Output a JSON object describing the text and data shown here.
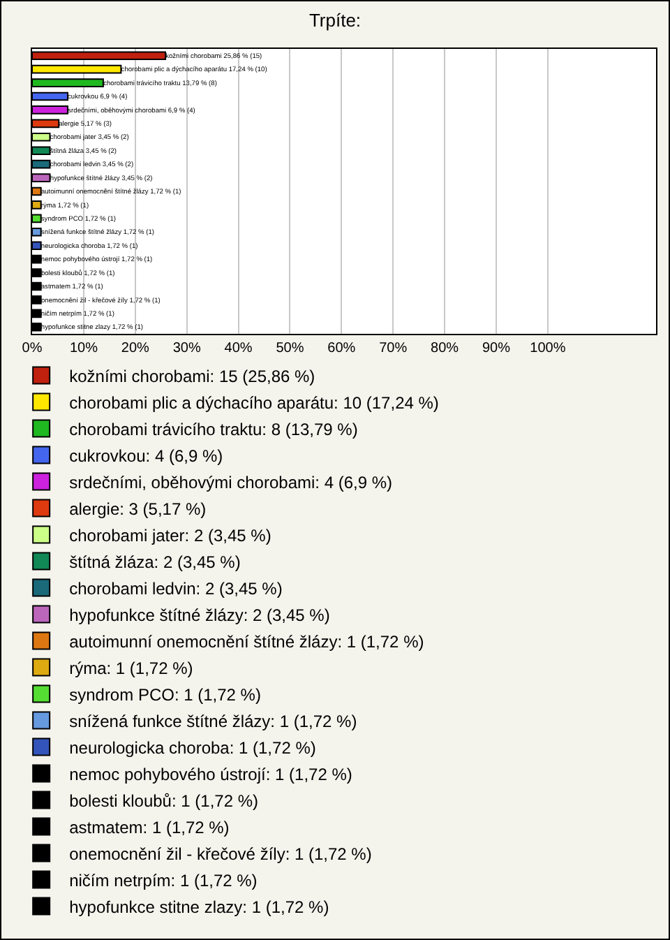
{
  "chart_data": {
    "type": "bar",
    "orientation": "horizontal",
    "title": "Trpíte:",
    "categories": [
      null,
      null,
      null,
      null,
      null,
      null,
      null,
      null,
      null,
      null,
      null,
      null,
      null,
      null,
      null,
      null,
      null,
      null,
      null,
      null,
      null
    ],
    "xlim": [
      0,
      121
    ],
    "xticks": [
      {
        "value": 0,
        "label": "0%"
      },
      {
        "value": 10,
        "label": "10%"
      },
      {
        "value": 20,
        "label": "20%"
      },
      {
        "value": 30,
        "label": "30%"
      },
      {
        "value": 40,
        "label": "40%"
      },
      {
        "value": 50,
        "label": "50%"
      },
      {
        "value": 60,
        "label": "60%"
      },
      {
        "value": 70,
        "label": "70%"
      },
      {
        "value": 80,
        "label": "80%"
      },
      {
        "value": 90,
        "label": "90%"
      },
      {
        "value": 100,
        "label": "100%"
      }
    ],
    "grid": "x",
    "legend": "bottom",
    "tick_labels": "x",
    "series": [
      {
        "name": "kožními chorobami: 15 (25,86 %)",
        "color": "#c0200e",
        "values": [
          25.86,
          null,
          null,
          null,
          null,
          null,
          null,
          null,
          null,
          null,
          null,
          null,
          null,
          null,
          null,
          null,
          null,
          null,
          null,
          null,
          null
        ],
        "value_labels": [
          "kožními chorobami 25,86 % (15)",
          null,
          null,
          null,
          null,
          null,
          null,
          null,
          null,
          null,
          null,
          null,
          null,
          null,
          null,
          null,
          null,
          null,
          null,
          null,
          null
        ]
      },
      {
        "name": "chorobami plic a dýchacího aparátu: 10 (17,24 %)",
        "color": "#ffe800",
        "values": [
          null,
          17.24,
          null,
          null,
          null,
          null,
          null,
          null,
          null,
          null,
          null,
          null,
          null,
          null,
          null,
          null,
          null,
          null,
          null,
          null,
          null
        ],
        "value_labels": [
          null,
          "chorobami plic a dýchacího aparátu 17,24 % (10)",
          null,
          null,
          null,
          null,
          null,
          null,
          null,
          null,
          null,
          null,
          null,
          null,
          null,
          null,
          null,
          null,
          null,
          null,
          null
        ]
      },
      {
        "name": "chorobami trávicího traktu: 8 (13,79 %)",
        "color": "#20b820",
        "values": [
          null,
          null,
          13.79,
          null,
          null,
          null,
          null,
          null,
          null,
          null,
          null,
          null,
          null,
          null,
          null,
          null,
          null,
          null,
          null,
          null,
          null
        ],
        "value_labels": [
          null,
          null,
          "chorobami trávicího traktu 13,79 % (8)",
          null,
          null,
          null,
          null,
          null,
          null,
          null,
          null,
          null,
          null,
          null,
          null,
          null,
          null,
          null,
          null,
          null,
          null
        ]
      },
      {
        "name": "cukrovkou: 4 (6,9 %)",
        "color": "#4466ee",
        "values": [
          null,
          null,
          null,
          6.9,
          null,
          null,
          null,
          null,
          null,
          null,
          null,
          null,
          null,
          null,
          null,
          null,
          null,
          null,
          null,
          null,
          null
        ],
        "value_labels": [
          null,
          null,
          null,
          "cukrovkou 6,9 % (4)",
          null,
          null,
          null,
          null,
          null,
          null,
          null,
          null,
          null,
          null,
          null,
          null,
          null,
          null,
          null,
          null,
          null
        ]
      },
      {
        "name": "srdečními, oběhovými chorobami: 4 (6,9 %)",
        "color": "#cc22dd",
        "values": [
          null,
          null,
          null,
          null,
          6.9,
          null,
          null,
          null,
          null,
          null,
          null,
          null,
          null,
          null,
          null,
          null,
          null,
          null,
          null,
          null,
          null
        ],
        "value_labels": [
          null,
          null,
          null,
          null,
          "srdečními, oběhovými chorobami 6,9 % (4)",
          null,
          null,
          null,
          null,
          null,
          null,
          null,
          null,
          null,
          null,
          null,
          null,
          null,
          null,
          null,
          null
        ]
      },
      {
        "name": "alergie: 3 (5,17 %)",
        "color": "#dd3a10",
        "values": [
          null,
          null,
          null,
          null,
          null,
          5.17,
          null,
          null,
          null,
          null,
          null,
          null,
          null,
          null,
          null,
          null,
          null,
          null,
          null,
          null,
          null
        ],
        "value_labels": [
          null,
          null,
          null,
          null,
          null,
          "alergie 5,17 % (3)",
          null,
          null,
          null,
          null,
          null,
          null,
          null,
          null,
          null,
          null,
          null,
          null,
          null,
          null,
          null
        ]
      },
      {
        "name": "chorobami jater: 2 (3,45 %)",
        "color": "#ccff88",
        "values": [
          null,
          null,
          null,
          null,
          null,
          null,
          3.45,
          null,
          null,
          null,
          null,
          null,
          null,
          null,
          null,
          null,
          null,
          null,
          null,
          null,
          null
        ],
        "value_labels": [
          null,
          null,
          null,
          null,
          null,
          null,
          "chorobami jater 3,45 % (2)",
          null,
          null,
          null,
          null,
          null,
          null,
          null,
          null,
          null,
          null,
          null,
          null,
          null,
          null
        ]
      },
      {
        "name": "štítná žláza: 2 (3,45 %)",
        "color": "#118855",
        "values": [
          null,
          null,
          null,
          null,
          null,
          null,
          null,
          3.45,
          null,
          null,
          null,
          null,
          null,
          null,
          null,
          null,
          null,
          null,
          null,
          null,
          null
        ],
        "value_labels": [
          null,
          null,
          null,
          null,
          null,
          null,
          null,
          "štítná žláza 3,45 % (2)",
          null,
          null,
          null,
          null,
          null,
          null,
          null,
          null,
          null,
          null,
          null,
          null,
          null
        ]
      },
      {
        "name": "chorobami ledvin: 2 (3,45 %)",
        "color": "#1a6a7a",
        "values": [
          null,
          null,
          null,
          null,
          null,
          null,
          null,
          null,
          3.45,
          null,
          null,
          null,
          null,
          null,
          null,
          null,
          null,
          null,
          null,
          null,
          null
        ],
        "value_labels": [
          null,
          null,
          null,
          null,
          null,
          null,
          null,
          null,
          "chorobami ledvin 3,45 % (2)",
          null,
          null,
          null,
          null,
          null,
          null,
          null,
          null,
          null,
          null,
          null,
          null
        ]
      },
      {
        "name": "hypofunkce štítné žlázy: 2 (3,45 %)",
        "color": "#bb66bb",
        "values": [
          null,
          null,
          null,
          null,
          null,
          null,
          null,
          null,
          null,
          3.45,
          null,
          null,
          null,
          null,
          null,
          null,
          null,
          null,
          null,
          null,
          null
        ],
        "value_labels": [
          null,
          null,
          null,
          null,
          null,
          null,
          null,
          null,
          null,
          "hypofunkce štítné žlázy 3,45 % (2)",
          null,
          null,
          null,
          null,
          null,
          null,
          null,
          null,
          null,
          null,
          null
        ]
      },
      {
        "name": "autoimunní onemocnění štítné žlázy: 1 (1,72 %)",
        "color": "#dd7711",
        "values": [
          null,
          null,
          null,
          null,
          null,
          null,
          null,
          null,
          null,
          null,
          1.72,
          null,
          null,
          null,
          null,
          null,
          null,
          null,
          null,
          null,
          null
        ],
        "value_labels": [
          null,
          null,
          null,
          null,
          null,
          null,
          null,
          null,
          null,
          null,
          "autoimunní onemocnění štítné žlázy 1,72 % (1)",
          null,
          null,
          null,
          null,
          null,
          null,
          null,
          null,
          null,
          null
        ]
      },
      {
        "name": "rýma: 1 (1,72 %)",
        "color": "#ddaa11",
        "values": [
          null,
          null,
          null,
          null,
          null,
          null,
          null,
          null,
          null,
          null,
          null,
          1.72,
          null,
          null,
          null,
          null,
          null,
          null,
          null,
          null,
          null
        ],
        "value_labels": [
          null,
          null,
          null,
          null,
          null,
          null,
          null,
          null,
          null,
          null,
          null,
          "rýma 1,72 % (1)",
          null,
          null,
          null,
          null,
          null,
          null,
          null,
          null,
          null
        ]
      },
      {
        "name": "syndrom PCO: 1 (1,72 %)",
        "color": "#55dd33",
        "values": [
          null,
          null,
          null,
          null,
          null,
          null,
          null,
          null,
          null,
          null,
          null,
          null,
          1.72,
          null,
          null,
          null,
          null,
          null,
          null,
          null,
          null
        ],
        "value_labels": [
          null,
          null,
          null,
          null,
          null,
          null,
          null,
          null,
          null,
          null,
          null,
          null,
          "syndrom PCO 1,72 % (1)",
          null,
          null,
          null,
          null,
          null,
          null,
          null,
          null
        ]
      },
      {
        "name": "snížená funkce štítné žlázy: 1 (1,72 %)",
        "color": "#6699dd",
        "values": [
          null,
          null,
          null,
          null,
          null,
          null,
          null,
          null,
          null,
          null,
          null,
          null,
          null,
          1.72,
          null,
          null,
          null,
          null,
          null,
          null,
          null
        ],
        "value_labels": [
          null,
          null,
          null,
          null,
          null,
          null,
          null,
          null,
          null,
          null,
          null,
          null,
          null,
          "snížená funkce štítné žlázy 1,72 % (1)",
          null,
          null,
          null,
          null,
          null,
          null,
          null
        ]
      },
      {
        "name": "neurologicka choroba: 1 (1,72 %)",
        "color": "#3355bb",
        "values": [
          null,
          null,
          null,
          null,
          null,
          null,
          null,
          null,
          null,
          null,
          null,
          null,
          null,
          null,
          1.72,
          null,
          null,
          null,
          null,
          null,
          null
        ],
        "value_labels": [
          null,
          null,
          null,
          null,
          null,
          null,
          null,
          null,
          null,
          null,
          null,
          null,
          null,
          null,
          "neurologicka choroba 1,72 % (1)",
          null,
          null,
          null,
          null,
          null,
          null
        ]
      },
      {
        "name": "nemoc pohybového ústrojí: 1 (1,72 %)",
        "color": "#000000",
        "values": [
          null,
          null,
          null,
          null,
          null,
          null,
          null,
          null,
          null,
          null,
          null,
          null,
          null,
          null,
          null,
          1.72,
          null,
          null,
          null,
          null,
          null
        ],
        "value_labels": [
          null,
          null,
          null,
          null,
          null,
          null,
          null,
          null,
          null,
          null,
          null,
          null,
          null,
          null,
          null,
          "nemoc pohybového ústrojí 1,72 % (1)",
          null,
          null,
          null,
          null,
          null
        ]
      },
      {
        "name": "bolesti kloubů: 1 (1,72 %)",
        "color": "#000000",
        "values": [
          null,
          null,
          null,
          null,
          null,
          null,
          null,
          null,
          null,
          null,
          null,
          null,
          null,
          null,
          null,
          null,
          1.72,
          null,
          null,
          null,
          null
        ],
        "value_labels": [
          null,
          null,
          null,
          null,
          null,
          null,
          null,
          null,
          null,
          null,
          null,
          null,
          null,
          null,
          null,
          null,
          "bolesti kloubů 1,72 % (1)",
          null,
          null,
          null,
          null
        ]
      },
      {
        "name": "astmatem: 1 (1,72 %)",
        "color": "#000000",
        "values": [
          null,
          null,
          null,
          null,
          null,
          null,
          null,
          null,
          null,
          null,
          null,
          null,
          null,
          null,
          null,
          null,
          null,
          1.72,
          null,
          null,
          null
        ],
        "value_labels": [
          null,
          null,
          null,
          null,
          null,
          null,
          null,
          null,
          null,
          null,
          null,
          null,
          null,
          null,
          null,
          null,
          null,
          "astmatem 1,72 % (1)",
          null,
          null,
          null
        ]
      },
      {
        "name": "onemocnění žil - křečové žíly: 1 (1,72 %)",
        "color": "#000000",
        "values": [
          null,
          null,
          null,
          null,
          null,
          null,
          null,
          null,
          null,
          null,
          null,
          null,
          null,
          null,
          null,
          null,
          null,
          null,
          1.72,
          null,
          null
        ],
        "value_labels": [
          null,
          null,
          null,
          null,
          null,
          null,
          null,
          null,
          null,
          null,
          null,
          null,
          null,
          null,
          null,
          null,
          null,
          null,
          "onemocnění žil - křečové žíly 1,72 % (1)",
          null,
          null
        ]
      },
      {
        "name": "ničím netrpím: 1 (1,72 %)",
        "color": "#000000",
        "values": [
          null,
          null,
          null,
          null,
          null,
          null,
          null,
          null,
          null,
          null,
          null,
          null,
          null,
          null,
          null,
          null,
          null,
          null,
          null,
          1.72,
          null
        ],
        "value_labels": [
          null,
          null,
          null,
          null,
          null,
          null,
          null,
          null,
          null,
          null,
          null,
          null,
          null,
          null,
          null,
          null,
          null,
          null,
          null,
          "ničím netrpím 1,72 % (1)",
          null
        ]
      },
      {
        "name": "hypofunkce stitne zlazy: 1 (1,72 %)",
        "color": "#000000",
        "values": [
          null,
          null,
          null,
          null,
          null,
          null,
          null,
          null,
          null,
          null,
          null,
          null,
          null,
          null,
          null,
          null,
          null,
          null,
          null,
          null,
          1.72
        ],
        "value_labels": [
          null,
          null,
          null,
          null,
          null,
          null,
          null,
          null,
          null,
          null,
          null,
          null,
          null,
          null,
          null,
          null,
          null,
          null,
          null,
          null,
          "hypofunkce stitne zlazy 1,72 % (1)"
        ]
      }
    ]
  }
}
